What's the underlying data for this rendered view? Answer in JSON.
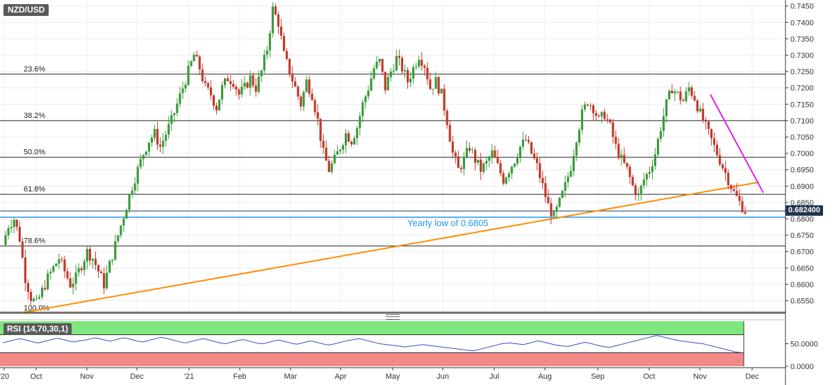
{
  "chart_data": {
    "type": "candlestick",
    "symbol": "NZD/USD",
    "current_price_label": "0.682400",
    "y_ticks": [
      "0.7450",
      "0.7400",
      "0.7350",
      "0.7300",
      "0.7250",
      "0.7200",
      "0.7150",
      "0.7100",
      "0.7050",
      "0.7000",
      "0.6950",
      "0.6900",
      "0.6850",
      "0.6800",
      "0.6750",
      "0.6700",
      "0.6650",
      "0.6600",
      "0.6550"
    ],
    "ylim": [
      0.6515,
      0.7462
    ],
    "x_ticks": [
      "'20",
      "Oct",
      "Nov",
      "Dec",
      "'21",
      "Feb",
      "Mar",
      "Apr",
      "May",
      "Jun",
      "Jul",
      "Aug",
      "Sep",
      "Oct",
      "Nov",
      "Dec"
    ],
    "fibonacci_levels": [
      {
        "label": "23.6%",
        "value": 0.7242
      },
      {
        "label": "38.2%",
        "value": 0.71
      },
      {
        "label": "50.0%",
        "value": 0.6988
      },
      {
        "label": "61.8%",
        "value": 0.6875
      },
      {
        "label": "78.6%",
        "value": 0.6717
      },
      {
        "label": "100.0%",
        "value": 0.6512
      }
    ],
    "annotation": {
      "text": "Yearly low of 0.6805",
      "value": 0.6805
    },
    "current_price": 0.6824,
    "support_line": {
      "from": 0.6514,
      "to": 0.6912,
      "color": "#ff8c00"
    },
    "resistance_line": {
      "from": 0.718,
      "to": 0.688,
      "color": "#e020e0"
    },
    "price_path": [
      0.672,
      0.678,
      0.68,
      0.674,
      0.662,
      0.656,
      0.654,
      0.658,
      0.662,
      0.665,
      0.668,
      0.664,
      0.66,
      0.662,
      0.666,
      0.67,
      0.668,
      0.664,
      0.66,
      0.666,
      0.672,
      0.678,
      0.684,
      0.69,
      0.695,
      0.7,
      0.704,
      0.706,
      0.702,
      0.706,
      0.71,
      0.715,
      0.72,
      0.725,
      0.73,
      0.726,
      0.72,
      0.718,
      0.714,
      0.72,
      0.723,
      0.722,
      0.718,
      0.72,
      0.723,
      0.72,
      0.725,
      0.732,
      0.744,
      0.74,
      0.73,
      0.725,
      0.72,
      0.715,
      0.722,
      0.718,
      0.71,
      0.7,
      0.695,
      0.698,
      0.702,
      0.706,
      0.704,
      0.708,
      0.715,
      0.72,
      0.726,
      0.728,
      0.72,
      0.725,
      0.729,
      0.726,
      0.722,
      0.726,
      0.73,
      0.727,
      0.72,
      0.722,
      0.718,
      0.71,
      0.7,
      0.695,
      0.698,
      0.702,
      0.698,
      0.695,
      0.697,
      0.7,
      0.696,
      0.692,
      0.695,
      0.698,
      0.702,
      0.704,
      0.7,
      0.696,
      0.69,
      0.684,
      0.6805,
      0.685,
      0.69,
      0.696,
      0.705,
      0.712,
      0.716,
      0.714,
      0.71,
      0.712,
      0.708,
      0.702,
      0.698,
      0.695,
      0.69,
      0.687,
      0.692,
      0.695,
      0.7,
      0.708,
      0.715,
      0.72,
      0.718,
      0.716,
      0.72,
      0.717,
      0.712,
      0.708,
      0.704,
      0.7,
      0.696,
      0.692,
      0.688,
      0.685,
      0.6824
    ],
    "rsi": {
      "label": "RSI (14,70,30,1)",
      "overbought": 70,
      "oversold": 30,
      "ylim": [
        0,
        100
      ],
      "y_ticks": [
        "50.0000",
        "0.0000"
      ],
      "values": [
        52,
        54,
        56,
        58,
        60,
        61,
        59,
        57,
        55,
        53,
        52,
        54,
        56,
        58,
        60,
        62,
        61,
        59,
        57,
        55,
        54,
        56,
        57,
        58,
        60,
        62,
        63,
        61,
        59,
        57,
        56,
        58,
        60,
        62,
        63,
        61,
        59,
        57,
        55,
        54,
        56,
        58,
        60,
        62,
        64,
        63,
        61,
        59,
        57,
        55,
        53,
        52,
        54,
        56,
        58,
        60,
        61,
        59,
        57,
        55,
        53,
        51,
        50,
        52,
        54,
        56,
        58,
        59,
        57,
        55,
        53,
        51,
        50,
        51,
        53,
        55,
        57,
        58,
        56,
        54,
        52,
        50,
        49,
        51,
        53,
        55,
        56,
        54,
        52,
        50,
        48,
        47,
        49,
        51,
        53,
        55,
        57,
        58,
        60,
        61,
        60,
        58,
        56,
        54,
        52,
        50,
        49,
        48,
        47,
        46,
        45,
        44,
        43,
        44,
        45,
        46,
        47,
        48,
        47,
        46,
        45,
        44,
        43,
        42,
        41,
        40,
        39,
        38,
        37,
        36,
        35,
        34,
        36,
        38,
        40,
        42,
        44,
        46,
        48,
        50,
        51,
        52,
        51,
        50,
        49,
        48,
        50,
        52,
        54,
        56,
        55,
        53,
        51,
        49,
        47,
        46,
        45,
        44,
        45,
        47,
        49,
        51,
        53,
        52,
        50,
        48,
        46,
        44,
        43,
        42,
        44,
        46,
        48,
        50,
        52,
        54,
        56,
        58,
        60,
        62,
        64,
        66,
        68,
        67,
        65,
        63,
        61,
        59,
        57,
        56,
        55,
        54,
        53,
        52,
        51,
        50,
        48,
        46,
        44,
        42,
        40,
        38,
        36,
        34,
        32,
        31,
        30
      ]
    }
  }
}
